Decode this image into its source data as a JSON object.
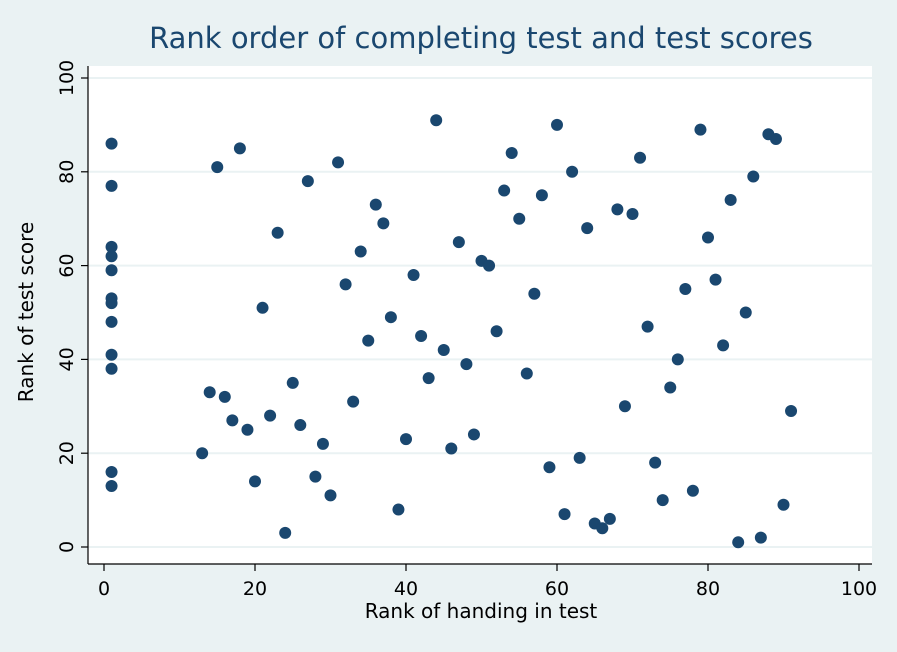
{
  "chart_data": {
    "type": "scatter",
    "title": "Rank order of completing test and test scores",
    "xlabel": "Rank of handing in test",
    "ylabel": "Rank of test score",
    "xlim": [
      0,
      100
    ],
    "ylim": [
      0,
      100
    ],
    "xticks": [
      0,
      20,
      40,
      60,
      80,
      100
    ],
    "yticks": [
      0,
      20,
      40,
      60,
      80,
      100
    ],
    "grid": true,
    "legend": "none",
    "colors": {
      "point": "#1a476f",
      "title": "#1a476f",
      "outer_background": "#eaf2f3",
      "plot_background": "#ffffff",
      "grid": "#eaf2f3"
    },
    "points": [
      [
        1,
        86
      ],
      [
        1,
        77
      ],
      [
        1,
        64
      ],
      [
        1,
        62
      ],
      [
        1,
        59
      ],
      [
        1,
        53
      ],
      [
        1,
        52
      ],
      [
        1,
        48
      ],
      [
        1,
        41
      ],
      [
        1,
        38
      ],
      [
        1,
        16
      ],
      [
        1,
        13
      ],
      [
        13,
        20
      ],
      [
        14,
        33
      ],
      [
        15,
        81
      ],
      [
        16,
        32
      ],
      [
        17,
        27
      ],
      [
        18,
        85
      ],
      [
        19,
        25
      ],
      [
        20,
        14
      ],
      [
        21,
        51
      ],
      [
        22,
        28
      ],
      [
        23,
        67
      ],
      [
        24,
        3
      ],
      [
        25,
        35
      ],
      [
        26,
        26
      ],
      [
        27,
        78
      ],
      [
        28,
        15
      ],
      [
        29,
        22
      ],
      [
        30,
        11
      ],
      [
        31,
        82
      ],
      [
        32,
        56
      ],
      [
        33,
        31
      ],
      [
        34,
        63
      ],
      [
        35,
        44
      ],
      [
        36,
        73
      ],
      [
        37,
        69
      ],
      [
        38,
        49
      ],
      [
        39,
        8
      ],
      [
        40,
        23
      ],
      [
        41,
        58
      ],
      [
        42,
        45
      ],
      [
        43,
        36
      ],
      [
        44,
        91
      ],
      [
        45,
        42
      ],
      [
        46,
        21
      ],
      [
        47,
        65
      ],
      [
        48,
        39
      ],
      [
        49,
        24
      ],
      [
        50,
        61
      ],
      [
        51,
        60
      ],
      [
        52,
        46
      ],
      [
        53,
        76
      ],
      [
        54,
        84
      ],
      [
        55,
        70
      ],
      [
        56,
        37
      ],
      [
        57,
        54
      ],
      [
        58,
        75
      ],
      [
        59,
        17
      ],
      [
        60,
        90
      ],
      [
        61,
        7
      ],
      [
        62,
        80
      ],
      [
        63,
        19
      ],
      [
        64,
        68
      ],
      [
        65,
        5
      ],
      [
        66,
        4
      ],
      [
        67,
        6
      ],
      [
        68,
        72
      ],
      [
        69,
        30
      ],
      [
        70,
        71
      ],
      [
        71,
        83
      ],
      [
        72,
        47
      ],
      [
        73,
        18
      ],
      [
        74,
        10
      ],
      [
        75,
        34
      ],
      [
        76,
        40
      ],
      [
        77,
        55
      ],
      [
        78,
        12
      ],
      [
        79,
        89
      ],
      [
        80,
        66
      ],
      [
        81,
        57
      ],
      [
        82,
        43
      ],
      [
        83,
        74
      ],
      [
        84,
        1
      ],
      [
        85,
        50
      ],
      [
        86,
        79
      ],
      [
        87,
        2
      ],
      [
        88,
        88
      ],
      [
        89,
        87
      ],
      [
        90,
        9
      ],
      [
        91,
        29
      ]
    ]
  }
}
